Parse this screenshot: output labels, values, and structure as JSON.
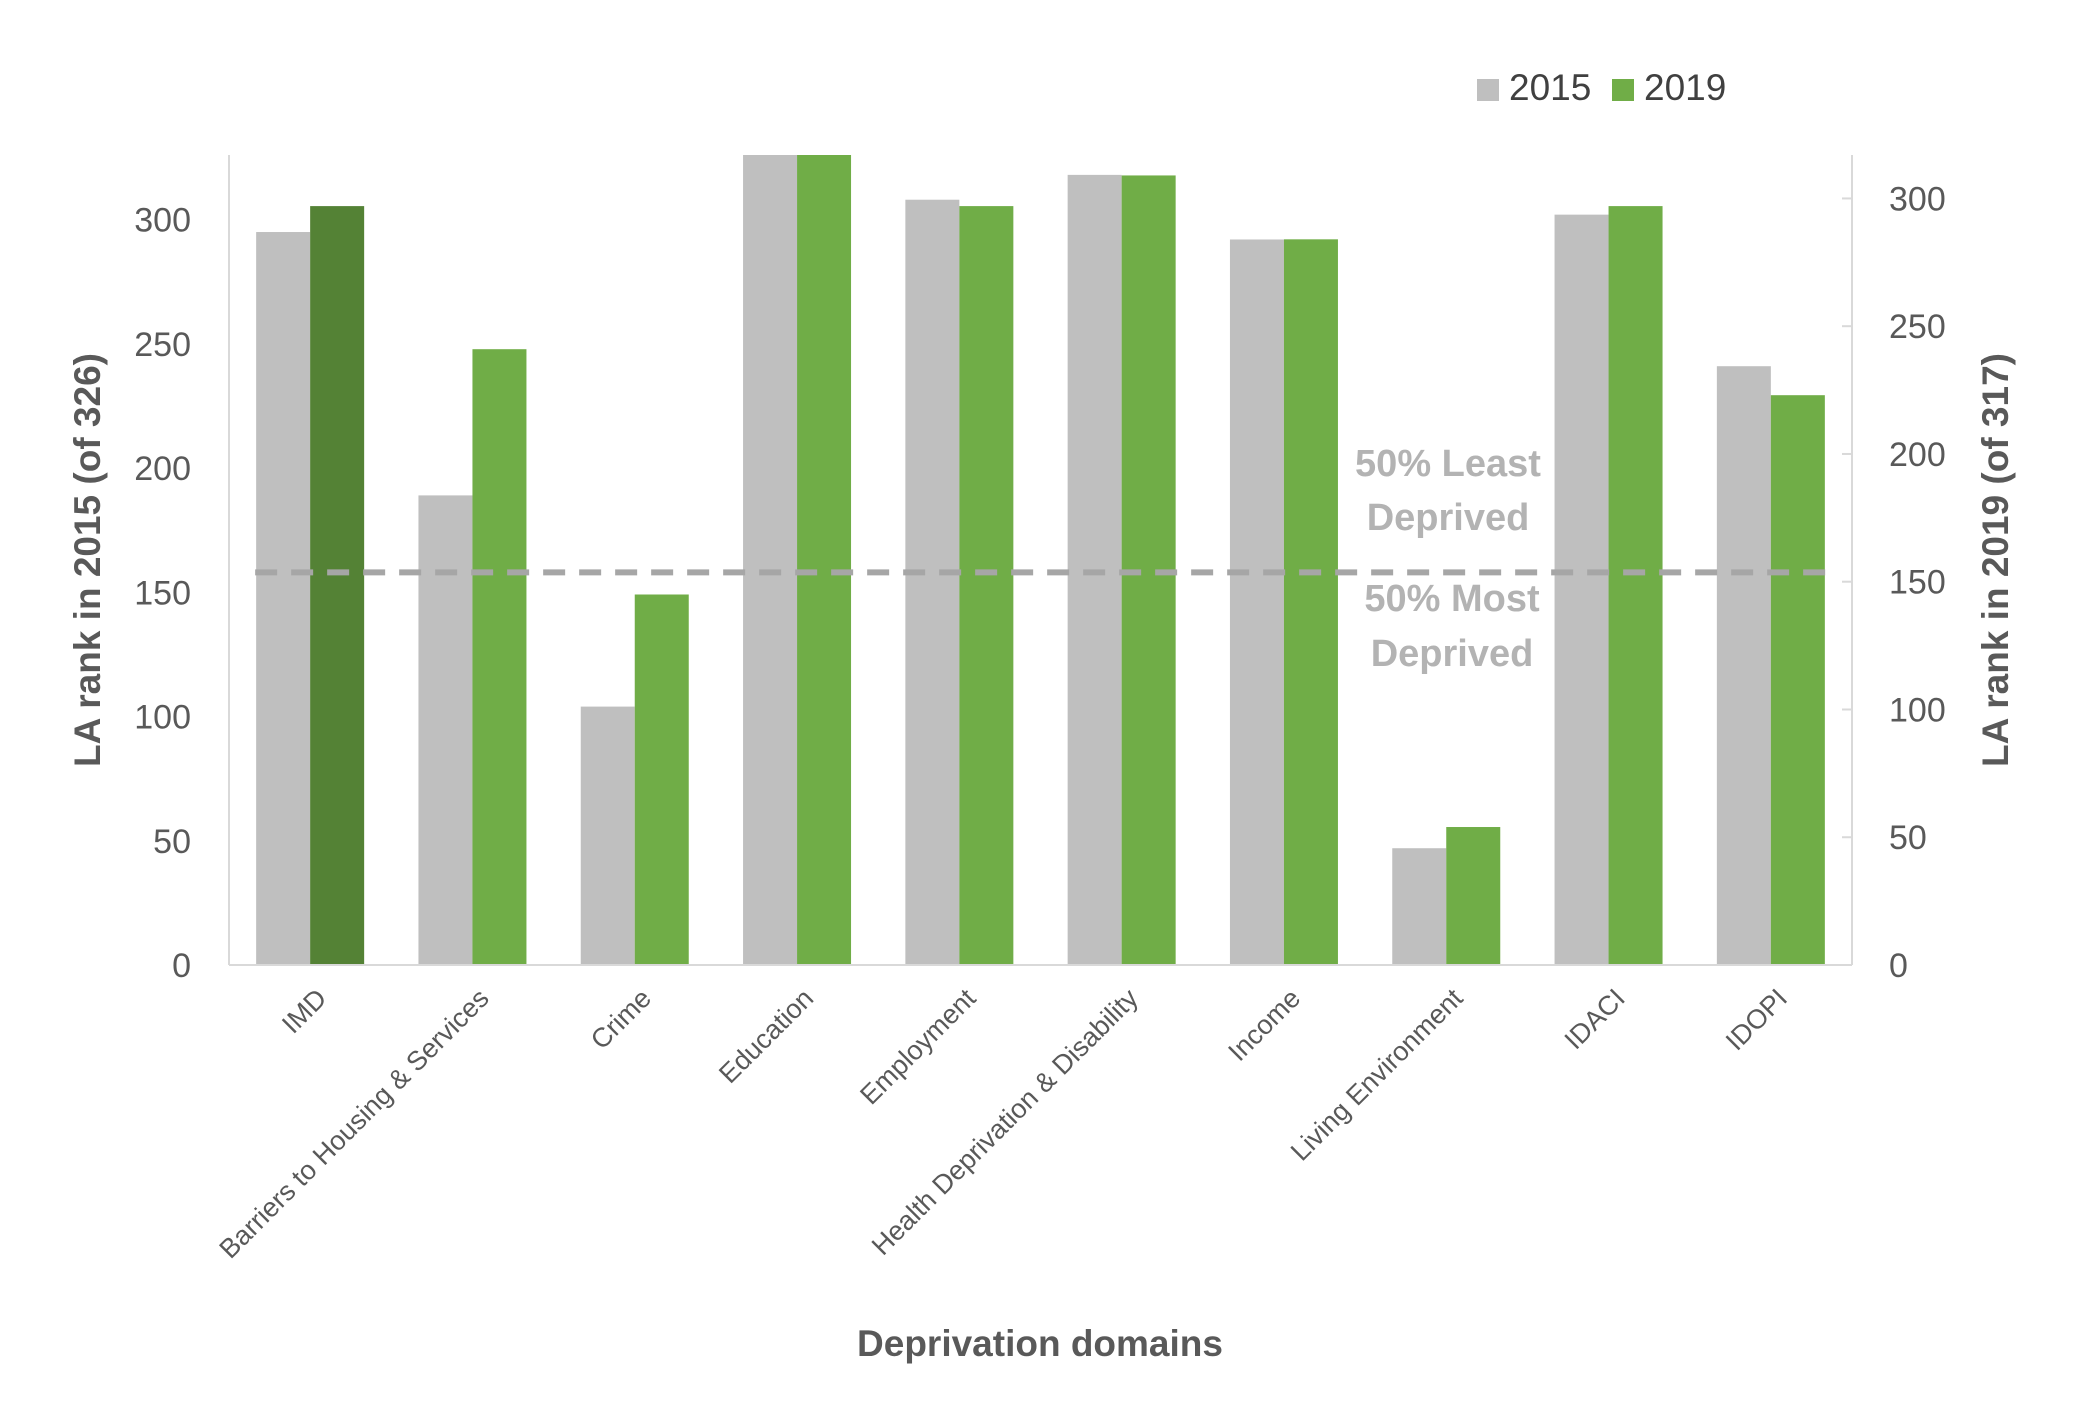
{
  "chart_data": {
    "type": "bar",
    "title": "",
    "xlabel": "Deprivation domains",
    "ylabel_left": "LA rank in 2015 (of 326)",
    "ylabel_right": "LA rank in 2019 (of 317)",
    "categories": [
      "IMD",
      "Barriers to Housing & Services",
      "Crime",
      "Education",
      "Employment",
      "Health Deprivation & Disability",
      "Income",
      "Living Environment",
      "IDACI",
      "IDOPI"
    ],
    "series": [
      {
        "name": "2015",
        "axis": "left",
        "color": "#bfbfbf",
        "values": [
          295,
          189,
          104,
          326,
          308,
          318,
          292,
          47,
          302,
          241
        ]
      },
      {
        "name": "2019",
        "axis": "right",
        "color": "#70ad47",
        "highlight": {
          "index": 0,
          "color": "#548235"
        },
        "values": [
          297,
          241,
          145,
          317,
          297,
          309,
          284,
          54,
          297,
          223
        ]
      }
    ],
    "left_axis": {
      "ylim": [
        0,
        326
      ],
      "ticks": [
        0,
        50,
        100,
        150,
        200,
        250,
        300
      ]
    },
    "right_axis": {
      "ylim": [
        0,
        317
      ],
      "ticks": [
        0,
        50,
        100,
        150,
        200,
        250,
        300
      ]
    },
    "reference_line": {
      "value_left_axis": 158,
      "style": "dashed",
      "color": "#a6a6a6"
    },
    "annotations": {
      "above_line": [
        "50% Least",
        "Deprived"
      ],
      "below_line": [
        "50% Most",
        "Deprived"
      ]
    },
    "legend_position": "top-right",
    "grid": false
  }
}
